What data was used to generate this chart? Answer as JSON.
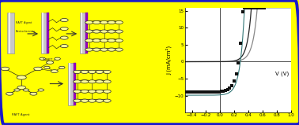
{
  "background_color": "#FFFF00",
  "border_color": "#1A1ACC",
  "plot_bg": "#FFFFFF",
  "ylabel": "J (mA/cm²)",
  "xlabel": "V (V)",
  "xlim": [
    -0.5,
    1.0
  ],
  "ylim": [
    -15,
    16
  ],
  "xticks": [
    -0.4,
    -0.2,
    0.0,
    0.2,
    0.4,
    0.6,
    0.8,
    1.0
  ],
  "yticks": [
    -10,
    -5,
    0,
    5,
    10,
    15
  ],
  "dark_curve_color": "#222222",
  "gray_curve_color": "#888888",
  "teal_curve_color": "#337777",
  "scatter_color": "#111111",
  "axis_fontsize": 5,
  "tick_fontsize": 4,
  "label_fontsize": 3.5
}
